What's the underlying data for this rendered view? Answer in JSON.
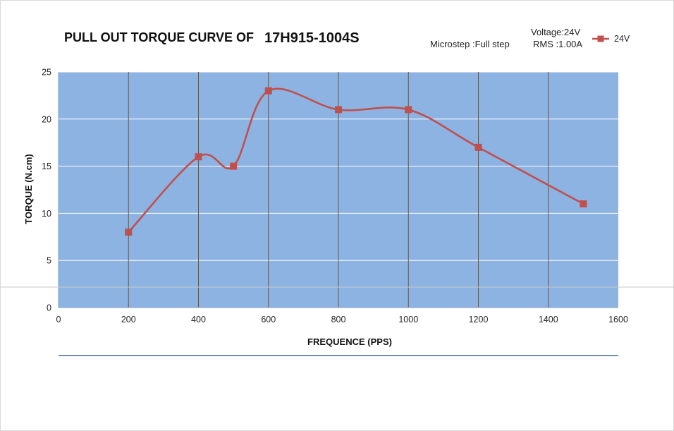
{
  "chart_data": {
    "type": "line",
    "title_part1": "PULL OUT TORQUE CURVE OF",
    "title_part2": "17H915-1004S",
    "xlabel": "FREQUENCE (PPS)",
    "ylabel": "TORQUE (N.cm)",
    "xlim": [
      0,
      1600
    ],
    "ylim": [
      0,
      25
    ],
    "x_ticks": [
      0,
      200,
      400,
      600,
      800,
      1000,
      1200,
      1400,
      1600
    ],
    "y_ticks": [
      0,
      5,
      10,
      15,
      20,
      25
    ],
    "grid": "vertical and horizontal",
    "legend_position": "top-right",
    "series": [
      {
        "name": "24V",
        "color": "#c0504d",
        "marker": "square",
        "smooth": true,
        "x": [
          200,
          400,
          500,
          600,
          800,
          1000,
          1200,
          1500
        ],
        "y": [
          8,
          16,
          15,
          23,
          21,
          21,
          17,
          11
        ]
      }
    ]
  },
  "info": {
    "voltage": "Voltage:24V",
    "microstep": "Microstep :Full step",
    "rms": "RMS :1.00A"
  },
  "colors": {
    "plot_background": "#8db3e2",
    "grid_vertical": "#595959",
    "grid_horizontal": "#ffffff",
    "series": "#c0504d",
    "bottom_rule": "#1f4e79"
  }
}
